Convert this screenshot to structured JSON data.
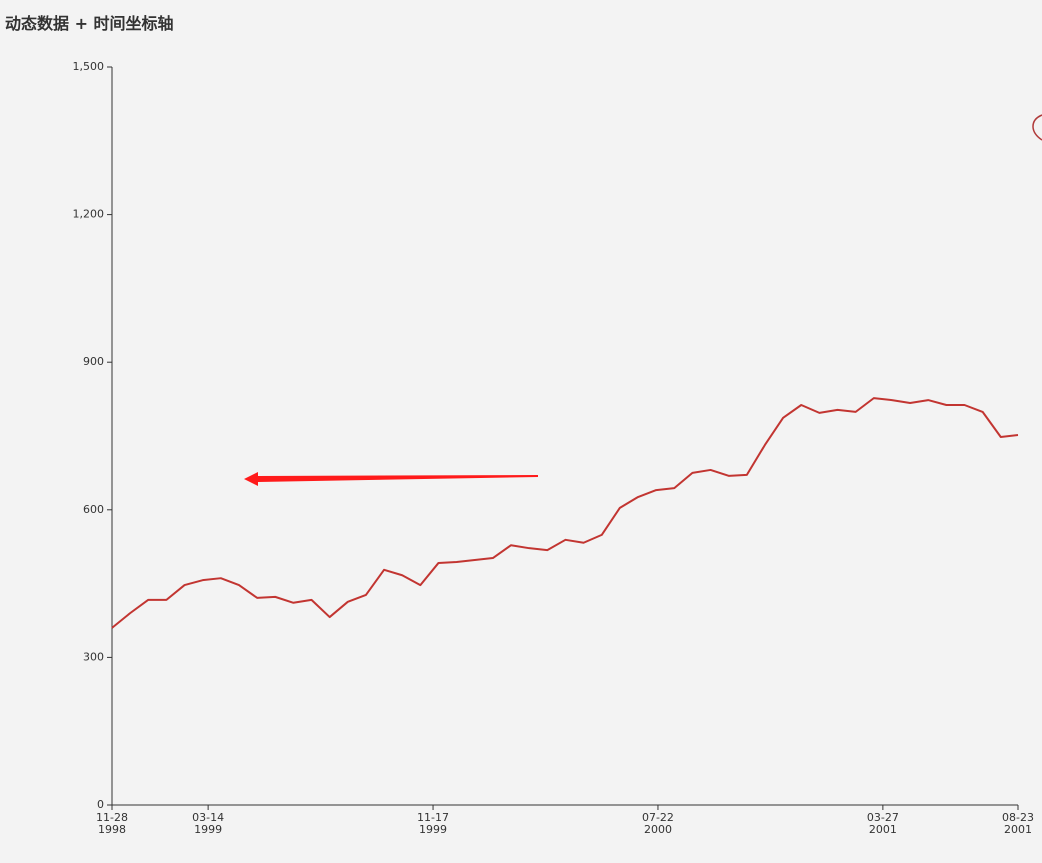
{
  "chart_data": {
    "type": "line",
    "title": "动态数据 + 时间坐标轴",
    "color": "#c23531",
    "x": [
      "1998-11-28",
      "1998-12-18",
      "1999-01-07",
      "1999-01-27",
      "1999-02-16",
      "1999-03-08",
      "1999-03-28",
      "1999-04-17",
      "1999-05-07",
      "1999-05-27",
      "1999-06-16",
      "1999-07-06",
      "1999-07-26",
      "1999-08-15",
      "1999-09-04",
      "1999-09-24",
      "1999-10-14",
      "1999-11-03",
      "1999-11-23",
      "1999-12-13",
      "2000-01-02",
      "2000-01-22",
      "2000-02-11",
      "2000-03-02",
      "2000-03-22",
      "2000-04-11",
      "2000-05-01",
      "2000-05-21",
      "2000-06-10",
      "2000-06-30",
      "2000-07-20",
      "2000-08-09",
      "2000-08-29",
      "2000-09-18",
      "2000-10-08",
      "2000-10-28",
      "2000-11-17",
      "2000-12-07",
      "2000-12-27",
      "2001-01-16",
      "2001-02-05",
      "2001-02-25",
      "2001-03-17",
      "2001-04-06",
      "2001-04-26",
      "2001-05-16",
      "2001-06-05",
      "2001-06-25",
      "2001-07-15",
      "2001-08-04",
      "2001-08-23"
    ],
    "values": [
      360,
      390,
      417,
      417,
      447,
      457,
      461,
      447,
      421,
      423,
      411,
      417,
      382,
      413,
      427,
      478,
      467,
      447,
      492,
      494,
      498,
      502,
      528,
      522,
      518,
      539,
      533,
      549,
      604,
      626,
      640,
      644,
      675,
      681,
      669,
      671,
      732,
      787,
      813,
      797,
      803,
      799,
      827,
      823,
      817,
      823,
      813,
      813,
      799,
      748,
      752
    ],
    "xlim": [
      "1998-11-28",
      "2001-08-23"
    ],
    "xticks": [
      {
        "value": "1998-11-28",
        "label": "11-28\n1998"
      },
      {
        "value": "1999-03-14",
        "label": "03-14\n1999"
      },
      {
        "value": "1999-11-17",
        "label": "11-17\n1999"
      },
      {
        "value": "2000-07-22",
        "label": "07-22\n2000"
      },
      {
        "value": "2001-03-27",
        "label": "03-27\n2001"
      },
      {
        "value": "2001-08-23",
        "label": "08-23\n2001"
      }
    ],
    "ylim": [
      0,
      1500
    ],
    "yticks": [
      0,
      300,
      600,
      900,
      {
        "value": 1200,
        "label": "1,200"
      },
      {
        "value": 1500,
        "label": "1,500"
      }
    ],
    "grid": false
  }
}
